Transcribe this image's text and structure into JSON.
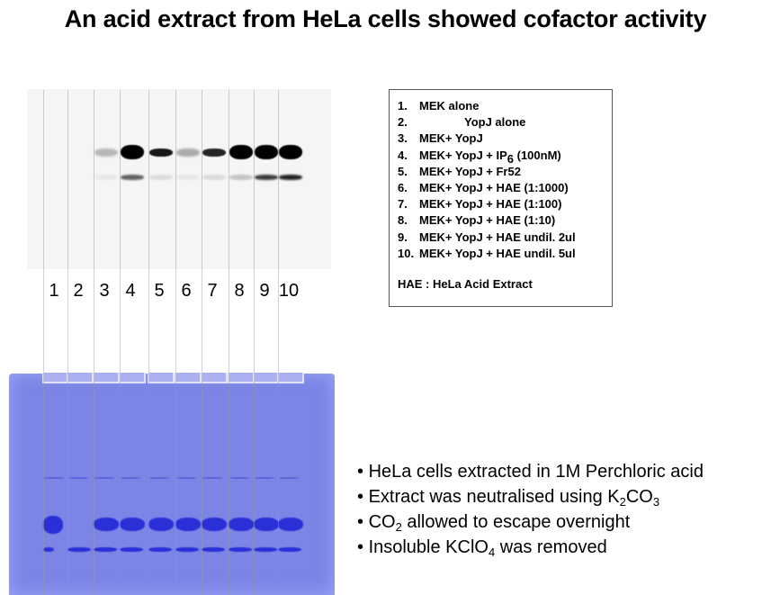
{
  "title": "An acid extract from HeLa cells showed cofactor activity",
  "lanes": [
    "1",
    "2",
    "3",
    "4",
    "5",
    "6",
    "7",
    "8",
    "9",
    "10"
  ],
  "autoradiograph": {
    "upper_band_intensity": [
      0,
      0,
      0.25,
      1,
      0.9,
      0.3,
      0.85,
      1,
      1,
      1
    ],
    "lower_band_intensity": [
      0,
      0,
      0.05,
      0.6,
      0.1,
      0.05,
      0.1,
      0.2,
      0.75,
      0.85
    ]
  },
  "coomassie_gel": {
    "color": "#7c85e6",
    "band_color": "#2a2fd8",
    "upper_band_present": [
      true,
      false,
      true,
      true,
      true,
      true,
      true,
      true,
      true,
      true
    ],
    "lower_band_present": [
      true,
      true,
      true,
      true,
      true,
      true,
      true,
      true,
      true,
      true
    ]
  },
  "legend": {
    "items": [
      {
        "num": "1.",
        "text": "MEK alone"
      },
      {
        "num": "2.",
        "text": "YopJ alone"
      },
      {
        "num": "3.",
        "text": "MEK+ YopJ"
      },
      {
        "num": "4.",
        "text": "MEK+ YopJ + IP",
        "sub": "6",
        "after": " (100nM)"
      },
      {
        "num": "5.",
        "text": "MEK+ YopJ + Fr52"
      },
      {
        "num": "6.",
        "text": "MEK+ YopJ + HAE (1:1000)"
      },
      {
        "num": "7.",
        "text": "MEK+ YopJ + HAE (1:100)"
      },
      {
        "num": "8.",
        "text": "MEK+ YopJ + HAE (1:10)"
      },
      {
        "num": "9.",
        "text": "MEK+ YopJ + HAE undil. 2ul"
      },
      {
        "num": "10.",
        "text": "MEK+ YopJ + HAE undil. 5ul"
      }
    ],
    "footnote": "HAE : HeLa Acid Extract"
  },
  "bullets": [
    {
      "pre": "HeLa cells extracted in 1M Perchloric acid"
    },
    {
      "pre": "Extract was neutralised using K",
      "sub1": "2",
      "mid": "CO",
      "sub2": "3"
    },
    {
      "pre": "CO",
      "sub1": "2",
      "mid": " allowed to escape overnight"
    },
    {
      "pre": "Insoluble KClO",
      "sub1": "4",
      "mid": " was removed"
    }
  ]
}
